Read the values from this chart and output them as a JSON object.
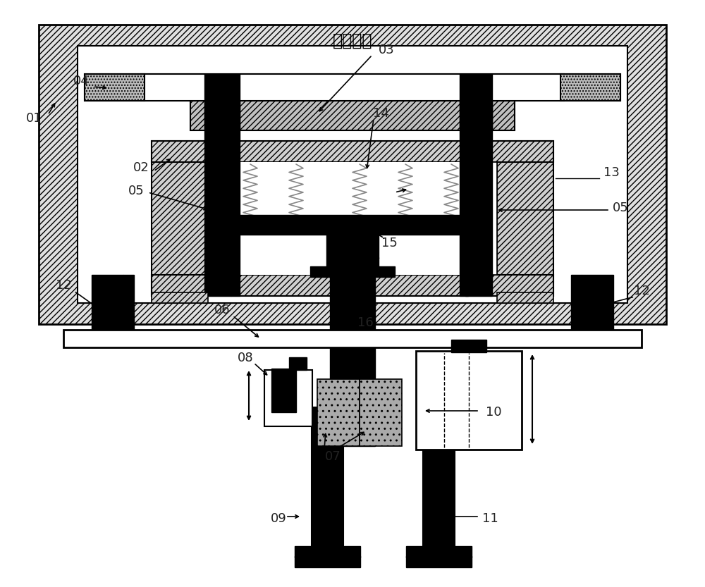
{
  "bg_color": "#ffffff",
  "chinese_text": "真空腔室",
  "black": "#000000",
  "white": "#ffffff",
  "gray_light": "#d8d8d8",
  "gray_mid": "#aaaaaa",
  "gray_dots": "#bbbbbb"
}
